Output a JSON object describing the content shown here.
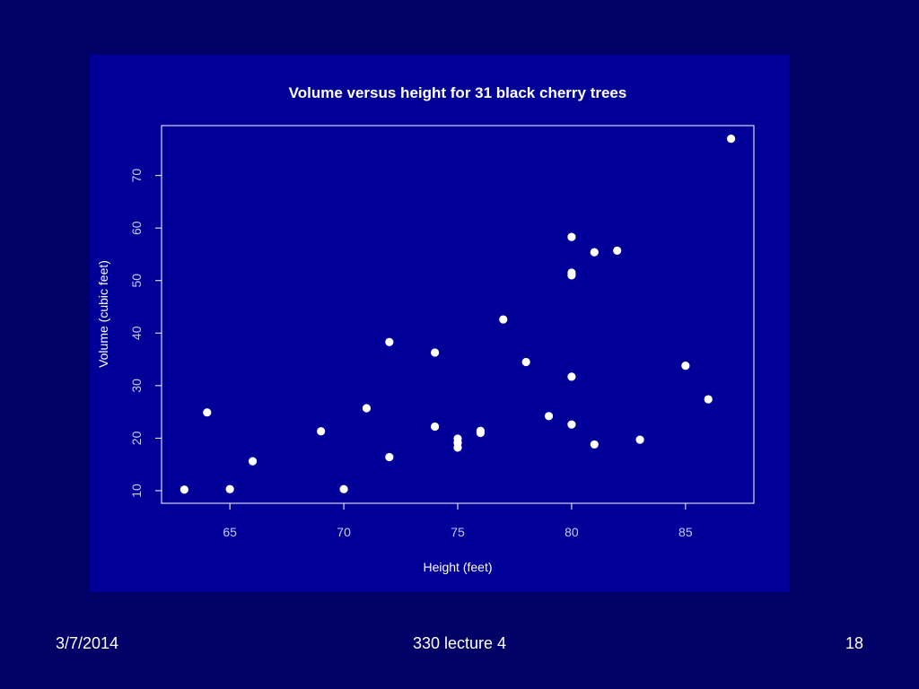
{
  "footer": {
    "date": "3/7/2014",
    "course": "330 lecture 4",
    "page": "18"
  },
  "colors": {
    "background": "#000066",
    "panel": "#000099",
    "points": "#ffffff",
    "axis": "#ffffff"
  },
  "chart_data": {
    "type": "scatter",
    "title": "Volume versus height for 31 black cherry trees",
    "xlabel": "Height (feet)",
    "ylabel": "Volume (cubic feet)",
    "xlim": [
      62,
      88
    ],
    "ylim": [
      7.6,
      79.5
    ],
    "xticks": [
      65,
      70,
      75,
      80,
      85
    ],
    "yticks": [
      10,
      20,
      30,
      40,
      50,
      60,
      70
    ],
    "grid": false,
    "legend": "none",
    "points": [
      {
        "x": 70,
        "y": 10.3
      },
      {
        "x": 65,
        "y": 10.3
      },
      {
        "x": 63,
        "y": 10.2
      },
      {
        "x": 72,
        "y": 16.4
      },
      {
        "x": 81,
        "y": 18.8
      },
      {
        "x": 83,
        "y": 19.7
      },
      {
        "x": 66,
        "y": 15.6
      },
      {
        "x": 75,
        "y": 18.2
      },
      {
        "x": 80,
        "y": 22.6
      },
      {
        "x": 75,
        "y": 19.9
      },
      {
        "x": 79,
        "y": 24.2
      },
      {
        "x": 76,
        "y": 21.0
      },
      {
        "x": 76,
        "y": 21.4
      },
      {
        "x": 69,
        "y": 21.3
      },
      {
        "x": 75,
        "y": 19.1
      },
      {
        "x": 74,
        "y": 22.2
      },
      {
        "x": 85,
        "y": 33.8
      },
      {
        "x": 86,
        "y": 27.4
      },
      {
        "x": 71,
        "y": 25.7
      },
      {
        "x": 64,
        "y": 24.9
      },
      {
        "x": 78,
        "y": 34.5
      },
      {
        "x": 80,
        "y": 31.7
      },
      {
        "x": 74,
        "y": 36.3
      },
      {
        "x": 72,
        "y": 38.3
      },
      {
        "x": 77,
        "y": 42.6
      },
      {
        "x": 81,
        "y": 55.4
      },
      {
        "x": 82,
        "y": 55.7
      },
      {
        "x": 80,
        "y": 58.3
      },
      {
        "x": 80,
        "y": 51.5
      },
      {
        "x": 80,
        "y": 51.0
      },
      {
        "x": 87,
        "y": 77.0
      }
    ]
  }
}
